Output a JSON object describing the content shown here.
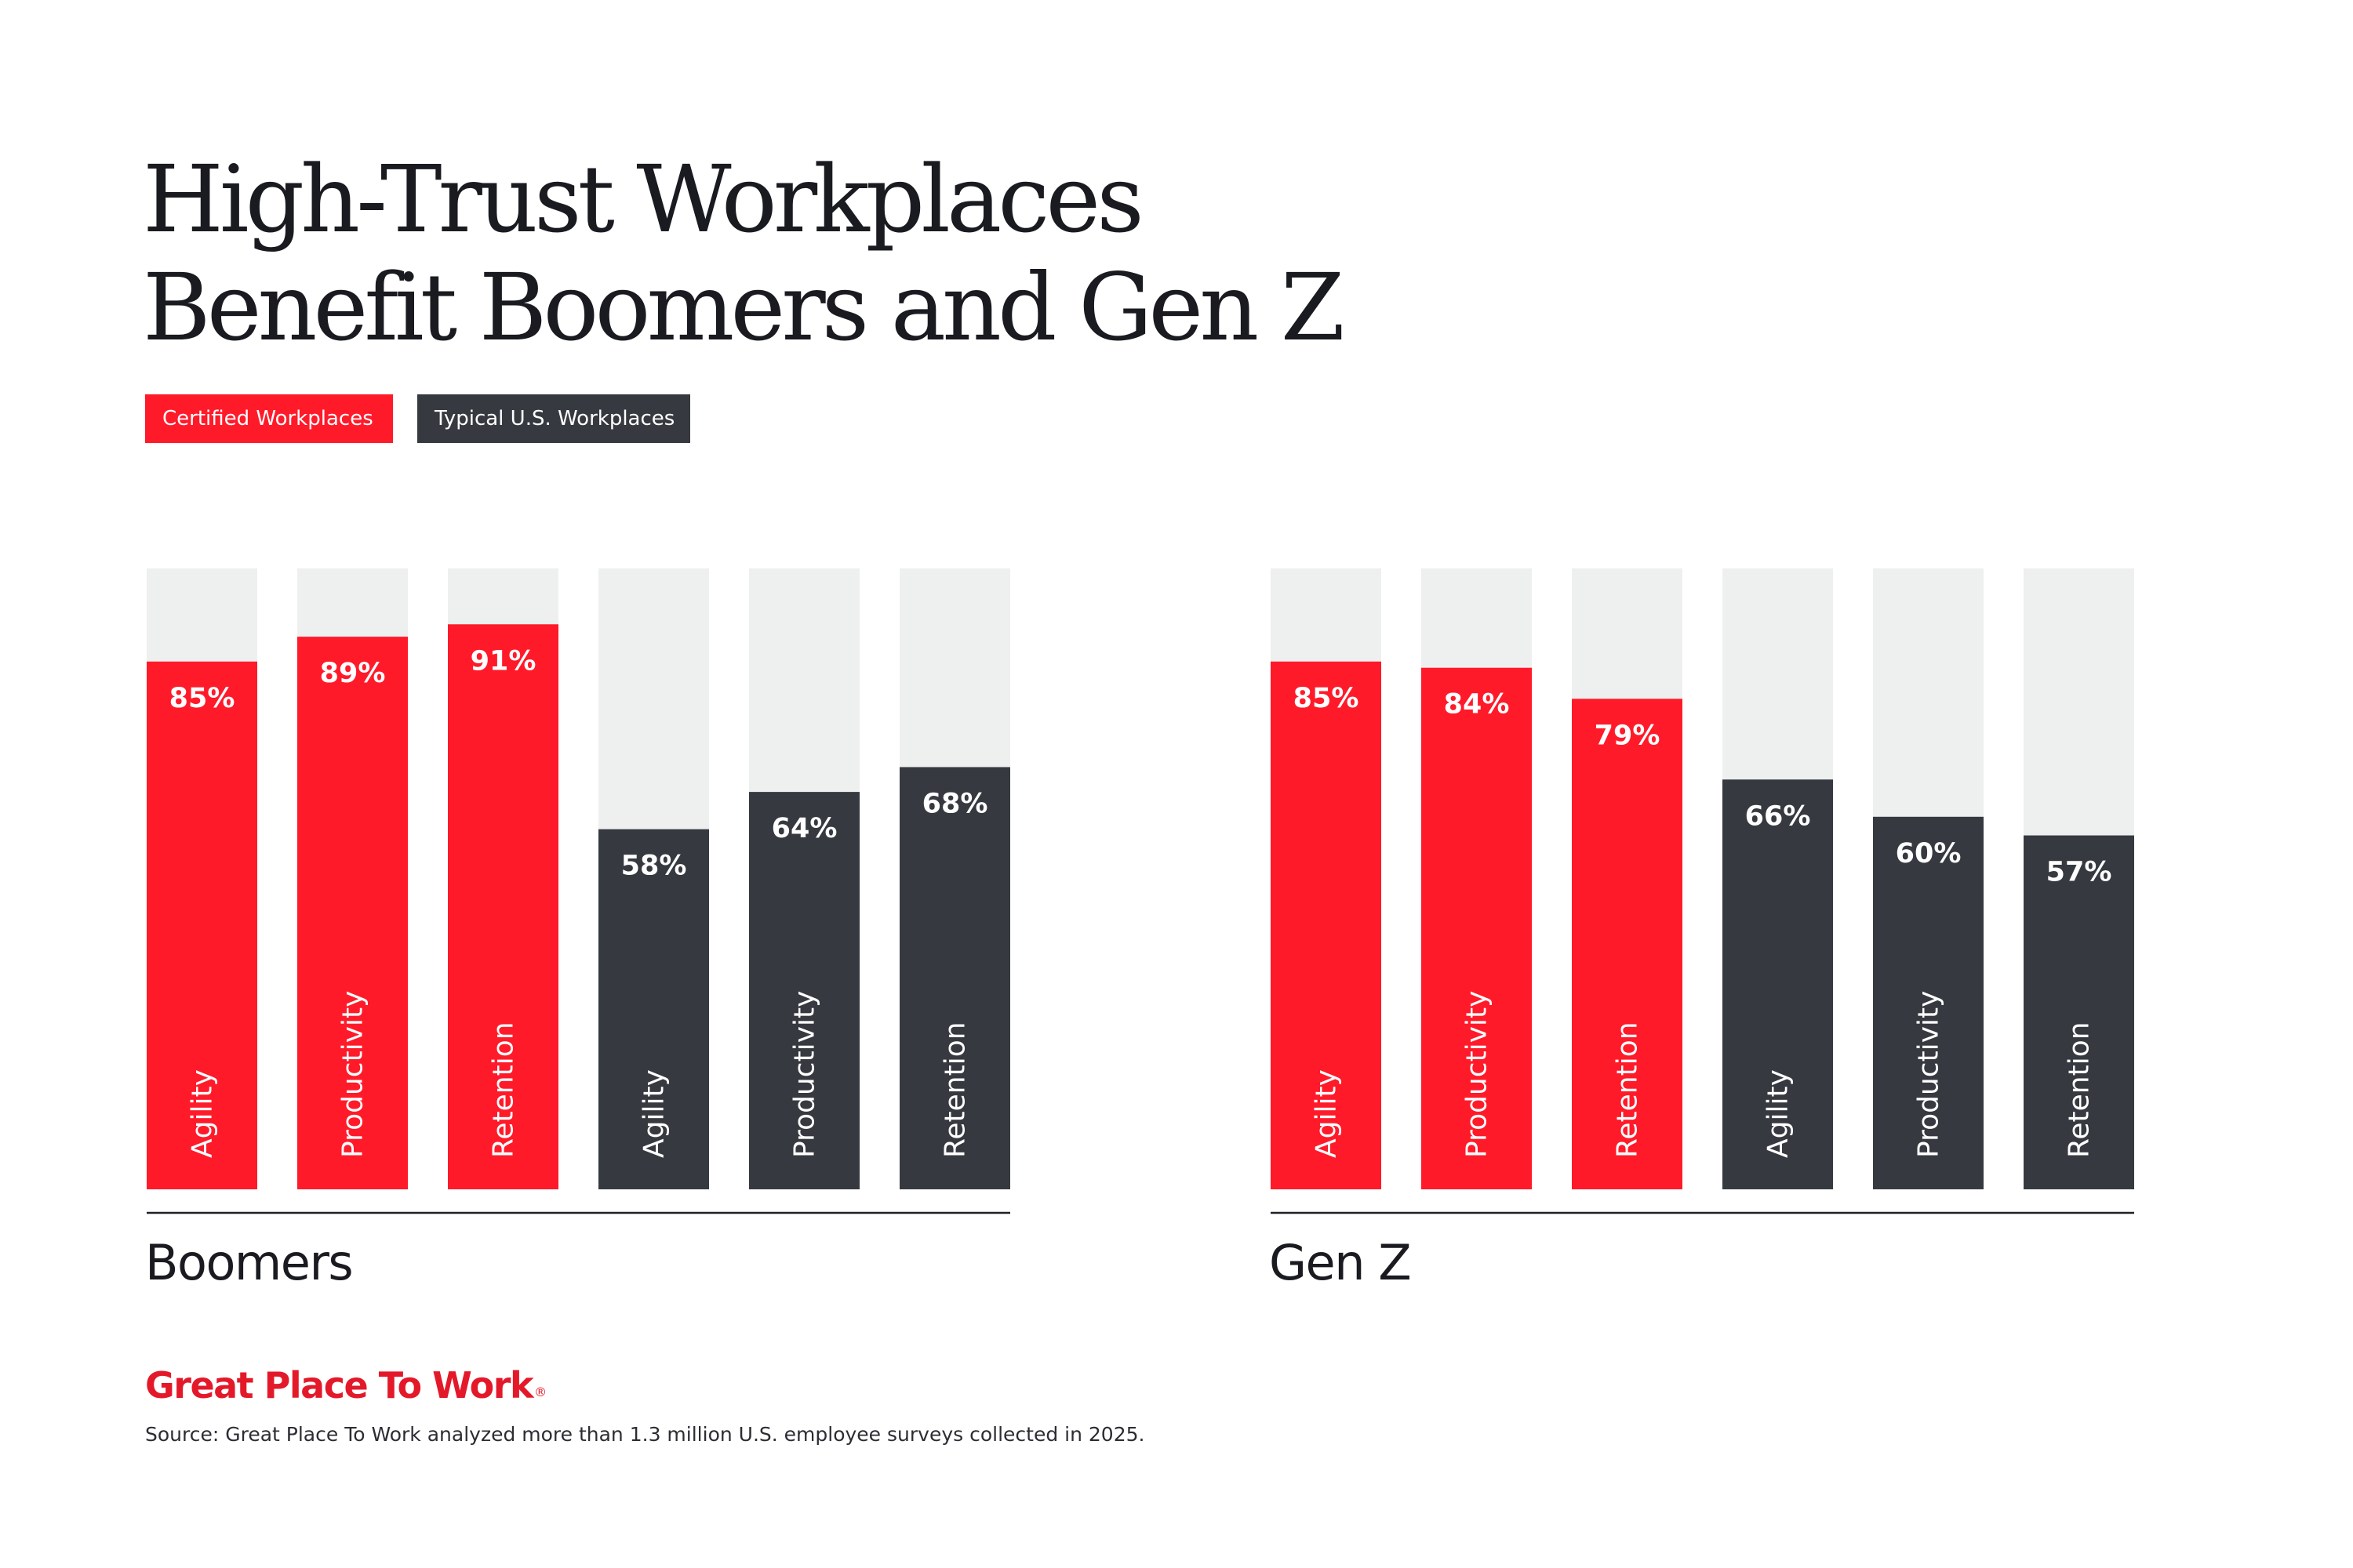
{
  "title": {
    "line1": "High-Trust Workplaces",
    "line2": "Benefit Boomers and Gen Z"
  },
  "legend": {
    "certified": "Certified Workplaces",
    "typical": "Typical U.S. Workplaces"
  },
  "colors": {
    "certified": "#ff1a2a",
    "typical": "#363a40",
    "track": "#eef0ef",
    "baseline": "#1e2026",
    "bar_text": "#ffffff"
  },
  "chart_data": [
    {
      "type": "bar",
      "group_label": "Boomers",
      "categories": [
        "Agility",
        "Productivity",
        "Retention",
        "Agility",
        "Productivity",
        "Retention"
      ],
      "series_key": [
        "certified",
        "certified",
        "certified",
        "typical",
        "typical",
        "typical"
      ],
      "values": [
        85,
        89,
        91,
        58,
        64,
        68
      ],
      "value_labels": [
        "85%",
        "89%",
        "91%",
        "58%",
        "64%",
        "68%"
      ],
      "ylim": [
        0,
        100
      ]
    },
    {
      "type": "bar",
      "group_label": "Gen Z",
      "categories": [
        "Agility",
        "Productivity",
        "Retention",
        "Agility",
        "Productivity",
        "Retention"
      ],
      "series_key": [
        "certified",
        "certified",
        "certified",
        "typical",
        "typical",
        "typical"
      ],
      "values": [
        85,
        84,
        79,
        66,
        60,
        57
      ],
      "value_labels": [
        "85%",
        "84%",
        "79%",
        "66%",
        "60%",
        "57%"
      ],
      "ylim": [
        0,
        100
      ]
    }
  ],
  "footer": {
    "brand": "Great Place To Work",
    "brand_mark": "®",
    "source": "Source: Great Place To Work analyzed more than 1.3 million U.S. employee surveys collected in 2025."
  }
}
